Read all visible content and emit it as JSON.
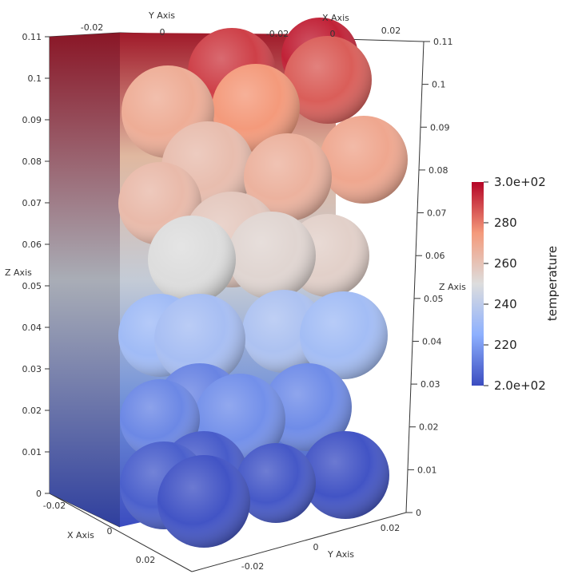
{
  "colors": {
    "cold": "#3b4cc0",
    "neutral": "#dddddd",
    "hot": "#b40426",
    "axis_line": "#333333"
  },
  "chart_data": {
    "type": "heatmap",
    "title": "",
    "colorbar": {
      "title": "temperature",
      "range": [
        200,
        300
      ],
      "ticks": [
        {
          "value": 300,
          "label": "3.0e+02"
        },
        {
          "value": 280,
          "label": "280"
        },
        {
          "value": 260,
          "label": "260"
        },
        {
          "value": 240,
          "label": "240"
        },
        {
          "value": 220,
          "label": "220"
        },
        {
          "value": 200,
          "label": "2.0e+02"
        }
      ],
      "colormap": "Cool to Warm"
    },
    "axes": {
      "x": {
        "label": "X Axis",
        "ticks": [
          "-0.02",
          "0",
          "0.02"
        ]
      },
      "y": {
        "label": "Y Axis",
        "ticks": [
          "-0.02",
          "0",
          "0.02"
        ]
      },
      "z": {
        "label": "Z Axis",
        "ticks": [
          "0",
          "0.01",
          "0.02",
          "0.03",
          "0.04",
          "0.05",
          "0.06",
          "0.07",
          "0.08",
          "0.09",
          "0.1",
          "0.11"
        ],
        "range": [
          0,
          0.11
        ]
      }
    },
    "legend_position": "right",
    "grid": true
  }
}
